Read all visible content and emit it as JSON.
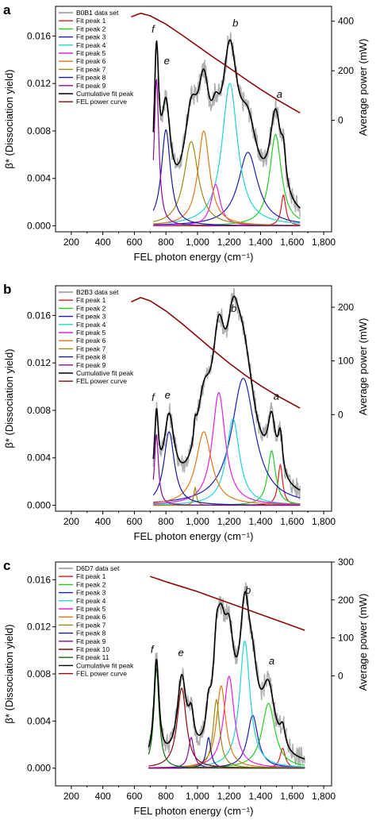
{
  "chart_data": [
    {
      "panel_label": "a",
      "type": "line",
      "xlabel": "FEL photon energy (cm⁻¹)",
      "ylabel": "β* (Dissociation yield)",
      "y2label": "Average power (mW)",
      "xlim": [
        100,
        1850
      ],
      "xticks": [
        200,
        400,
        600,
        800,
        1000,
        1200,
        1400,
        1600,
        1800
      ],
      "xtick_labels": [
        "200",
        "400",
        "600",
        "800",
        "1,000",
        "1,200",
        "1,400",
        "1,600",
        "1,800"
      ],
      "ylim": [
        -0.0005,
        0.0185
      ],
      "yticks": [
        0.0,
        0.004,
        0.008,
        0.012,
        0.016
      ],
      "ytick_labels": [
        "0.000",
        "0.004",
        "0.008",
        "0.012",
        "0.016"
      ],
      "y2lim": [
        -450,
        460
      ],
      "y2ticks": [
        0,
        200,
        400
      ],
      "y2tick_labels": [
        "0",
        "200",
        "400"
      ],
      "data_range": [
        720,
        1650
      ],
      "legend_position": "top-left",
      "annotations": [
        {
          "text": "f",
          "x": 718,
          "y": 0.0163
        },
        {
          "text": "e",
          "x": 805,
          "y": 0.0136
        },
        {
          "text": "b",
          "x": 1240,
          "y": 0.0168
        },
        {
          "text": "a",
          "x": 1520,
          "y": 0.0108
        }
      ],
      "series": [
        {
          "name": "B0B1 data set",
          "color": "#b0b0b0",
          "kind": "data"
        },
        {
          "name": "Fit peak 1",
          "color": "#e31a1c",
          "center": 1545,
          "width": 18,
          "amplitude": 0.0026
        },
        {
          "name": "Fit peak 2",
          "color": "#22cc22",
          "center": 1495,
          "width": 45,
          "amplitude": 0.0077
        },
        {
          "name": "Fit peak 3",
          "color": "#1f1fb4",
          "center": 1320,
          "width": 75,
          "amplitude": 0.0062
        },
        {
          "name": "Fit peak 4",
          "color": "#22d3d3",
          "center": 1205,
          "width": 60,
          "amplitude": 0.012
        },
        {
          "name": "Fit peak 5",
          "color": "#e020e0",
          "center": 1115,
          "width": 35,
          "amplitude": 0.0035
        },
        {
          "name": "Fit peak 6",
          "color": "#e07818",
          "center": 1040,
          "width": 45,
          "amplitude": 0.008
        },
        {
          "name": "Fit peak 7",
          "color": "#9a8a10",
          "center": 960,
          "width": 55,
          "amplitude": 0.0071
        },
        {
          "name": "Fit peak 8",
          "color": "#1a1aa0",
          "center": 800,
          "width": 35,
          "amplitude": 0.0081
        },
        {
          "name": "Fit peak 9",
          "color": "#8a0a9a",
          "center": 740,
          "width": 18,
          "amplitude": 0.0124
        },
        {
          "name": "Cumulative fit peak",
          "color": "#000000",
          "kind": "sum"
        },
        {
          "name": "FEL power curve",
          "color": "#8b0a0a",
          "kind": "power",
          "x": [
            580,
            640,
            700,
            800,
            900,
            1000,
            1100,
            1200,
            1300,
            1400,
            1500,
            1600,
            1650
          ],
          "values": [
            418,
            432,
            422,
            388,
            345,
            300,
            255,
            212,
            168,
            125,
            85,
            48,
            30
          ]
        }
      ]
    },
    {
      "panel_label": "b",
      "type": "line",
      "xlabel": "FEL photon energy (cm⁻¹)",
      "ylabel": "β* (Dissociation yield)",
      "y2label": "Average power (mW)",
      "xlim": [
        100,
        1850
      ],
      "xticks": [
        200,
        400,
        600,
        800,
        1000,
        1200,
        1400,
        1600,
        1800
      ],
      "xtick_labels": [
        "200",
        "400",
        "600",
        "800",
        "1,000",
        "1,200",
        "1,400",
        "1,600",
        "1,800"
      ],
      "ylim": [
        -0.0005,
        0.0185
      ],
      "yticks": [
        0.0,
        0.004,
        0.008,
        0.012,
        0.016
      ],
      "ytick_labels": [
        "0.000",
        "0.004",
        "0.008",
        "0.012",
        "0.016"
      ],
      "y2lim": [
        -180,
        240
      ],
      "y2ticks": [
        0,
        100,
        200
      ],
      "y2tick_labels": [
        "0",
        "100",
        "200"
      ],
      "data_range": [
        720,
        1650
      ],
      "legend_position": "top-left",
      "annotations": [
        {
          "text": "f",
          "x": 718,
          "y": 0.0088
        },
        {
          "text": "e",
          "x": 810,
          "y": 0.009
        },
        {
          "text": "b",
          "x": 1230,
          "y": 0.0163
        },
        {
          "text": "a",
          "x": 1500,
          "y": 0.0089
        }
      ],
      "series": [
        {
          "name": "B2B3 data set",
          "color": "#b0b0b0",
          "kind": "data"
        },
        {
          "name": "Fit peak 1",
          "color": "#e31a1c",
          "center": 1525,
          "width": 18,
          "amplitude": 0.0034
        },
        {
          "name": "Fit peak 2",
          "color": "#22cc22",
          "center": 1470,
          "width": 30,
          "amplitude": 0.0046
        },
        {
          "name": "Fit peak 3",
          "color": "#1f1fb4",
          "center": 1290,
          "width": 90,
          "amplitude": 0.0107
        },
        {
          "name": "Fit peak 4",
          "color": "#22d3d3",
          "center": 1225,
          "width": 50,
          "amplitude": 0.0073
        },
        {
          "name": "Fit peak 5",
          "color": "#e020e0",
          "center": 1135,
          "width": 50,
          "amplitude": 0.0095
        },
        {
          "name": "Fit peak 6",
          "color": "#e07818",
          "center": 1040,
          "width": 60,
          "amplitude": 0.0062
        },
        {
          "name": "Fit peak 7",
          "color": "#9a8a10",
          "center": 985,
          "width": 10,
          "amplitude": 0.0015
        },
        {
          "name": "Fit peak 8",
          "color": "#1a1aa0",
          "center": 820,
          "width": 40,
          "amplitude": 0.0062
        },
        {
          "name": "Fit peak 9",
          "color": "#8a0a9a",
          "center": 740,
          "width": 15,
          "amplitude": 0.006
        },
        {
          "name": "Cumulative fit peak",
          "color": "#000000",
          "kind": "sum"
        },
        {
          "name": "FEL power curve",
          "color": "#8b0a0a",
          "kind": "power",
          "x": [
            580,
            640,
            700,
            800,
            900,
            1000,
            1100,
            1200,
            1300,
            1400,
            1500,
            1600,
            1650
          ],
          "values": [
            210,
            218,
            212,
            193,
            170,
            145,
            120,
            96,
            74,
            54,
            36,
            20,
            12
          ]
        }
      ]
    },
    {
      "panel_label": "c",
      "type": "line",
      "xlabel": "FEL photon energy (cm⁻¹)",
      "ylabel": "β* (Dissociation yield)",
      "y2label": "Average power (mW)",
      "xlim": [
        100,
        1850
      ],
      "xticks": [
        200,
        400,
        600,
        800,
        1000,
        1200,
        1400,
        1600,
        1800
      ],
      "xtick_labels": [
        "200",
        "400",
        "600",
        "800",
        "1,000",
        "1,200",
        "1,400",
        "1,600",
        "1,800"
      ],
      "ylim": [
        -0.0015,
        0.0175
      ],
      "yticks": [
        0.0,
        0.004,
        0.008,
        0.012,
        0.016
      ],
      "ytick_labels": [
        "0.000",
        "0.004",
        "0.008",
        "0.012",
        "0.016"
      ],
      "y2lim": [
        -290,
        300
      ],
      "y2ticks": [
        0,
        100,
        200,
        300
      ],
      "y2tick_labels": [
        "0",
        "100",
        "200",
        "300"
      ],
      "data_range": [
        690,
        1680
      ],
      "legend_position": "top-left",
      "annotations": [
        {
          "text": "f",
          "x": 712,
          "y": 0.0098
        },
        {
          "text": "e",
          "x": 895,
          "y": 0.0095
        },
        {
          "text": "b",
          "x": 1320,
          "y": 0.0148
        },
        {
          "text": "a",
          "x": 1470,
          "y": 0.0088
        }
      ],
      "series": [
        {
          "name": "D6D7 data set",
          "color": "#b0b0b0",
          "kind": "data"
        },
        {
          "name": "Fit peak 1",
          "color": "#e31a1c",
          "center": 1540,
          "width": 20,
          "amplitude": 0.0017
        },
        {
          "name": "Fit peak 2",
          "color": "#22cc22",
          "center": 1450,
          "width": 50,
          "amplitude": 0.0055
        },
        {
          "name": "Fit peak 3",
          "color": "#1f1fb4",
          "center": 1350,
          "width": 40,
          "amplitude": 0.0045
        },
        {
          "name": "Fit peak 4",
          "color": "#22d3d3",
          "center": 1300,
          "width": 40,
          "amplitude": 0.0108
        },
        {
          "name": "Fit peak 5",
          "color": "#e020e0",
          "center": 1200,
          "width": 40,
          "amplitude": 0.0078
        },
        {
          "name": "Fit peak 6",
          "color": "#e07818",
          "center": 1150,
          "width": 35,
          "amplitude": 0.007
        },
        {
          "name": "Fit peak 7",
          "color": "#9a8a10",
          "center": 1120,
          "width": 25,
          "amplitude": 0.0058
        },
        {
          "name": "Fit peak 8",
          "color": "#1a1aa0",
          "center": 1070,
          "width": 18,
          "amplitude": 0.0026
        },
        {
          "name": "Fit peak 9",
          "color": "#8a0a9a",
          "center": 960,
          "width": 20,
          "amplitude": 0.0026
        },
        {
          "name": "Fit peak 10",
          "color": "#8b0a0a",
          "center": 900,
          "width": 35,
          "amplitude": 0.0068
        },
        {
          "name": "Fit peak 11",
          "color": "#0e6e0e",
          "center": 740,
          "width": 20,
          "amplitude": 0.0085
        },
        {
          "name": "Cumulative fit peak",
          "color": "#000000",
          "kind": "sum"
        },
        {
          "name": "FEL power curve",
          "color": "#8b0a0a",
          "kind": "power",
          "x": [
            700,
            800,
            900,
            1000,
            1100,
            1200,
            1300,
            1400,
            1500,
            1600,
            1680
          ],
          "values": [
            262,
            248,
            235,
            222,
            207,
            192,
            177,
            162,
            147,
            132,
            120
          ]
        }
      ]
    }
  ]
}
